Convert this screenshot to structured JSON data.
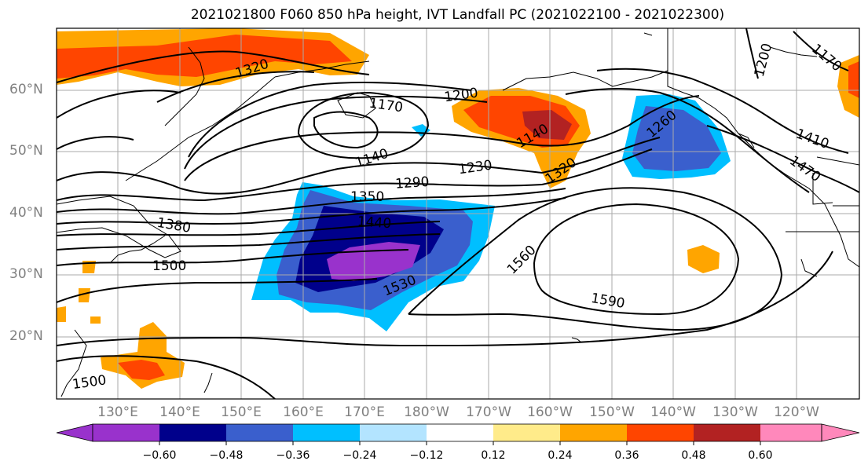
{
  "title": "2021021800 F060 850 hPa height, IVT Landfall PC (2021022100 - 2021022300)",
  "lat_labels": [
    "60°N",
    "50°N",
    "40°N",
    "30°N",
    "20°N"
  ],
  "lon_labels": [
    "130°E",
    "140°E",
    "150°E",
    "160°E",
    "170°E",
    "180°W",
    "170°W",
    "160°W",
    "150°W",
    "140°W",
    "130°W",
    "120°W"
  ],
  "contour_labels": [
    "1320",
    "1200",
    "1170",
    "1140",
    "1230",
    "1290",
    "1350",
    "1440",
    "1380",
    "1500",
    "1530",
    "1560",
    "1590",
    "1260",
    "1410",
    "1470",
    "1200",
    "1170",
    "1140",
    "1320",
    "1500"
  ],
  "colorbar": {
    "ticks": [
      "−0.60",
      "−0.48",
      "−0.36",
      "−0.24",
      "−0.12",
      "0.12",
      "0.24",
      "0.36",
      "0.48",
      "0.60"
    ],
    "colors": [
      "#9932cc",
      "#00008b",
      "#3a5fcd",
      "#00bfff",
      "#b3e4ff",
      "#ffffff",
      "#ffeb8a",
      "#ffa500",
      "#ff4500",
      "#b22222",
      "#ff88bb"
    ]
  },
  "colors": {
    "grid": "#aaaaaa",
    "axis_labels": "#808080"
  }
}
